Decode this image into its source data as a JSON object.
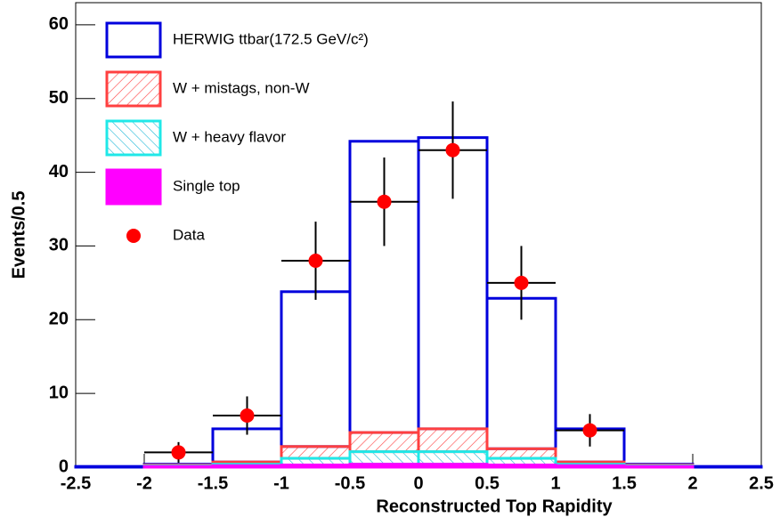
{
  "chart_data": {
    "type": "stacked-histogram",
    "x_label": "Reconstructed Top Rapidity",
    "y_label": "Events/0.5",
    "bins": [
      -2.5,
      -2,
      -1.5,
      -1,
      -0.5,
      0,
      0.5,
      1,
      1.5,
      2,
      2.5
    ],
    "series": [
      {
        "name": "HERWIG ttbar(172.5 GeV/c²)",
        "color": "#0000dd",
        "fill": "none",
        "values": [
          0.1,
          0.1,
          4.5,
          21.0,
          39.5,
          39.5,
          20.4,
          4.5,
          0.1,
          0.1
        ]
      },
      {
        "name": "W + mistags, non-W",
        "color": "#ff4040",
        "fill": "hatch-forward",
        "values": [
          0,
          0.1,
          0.3,
          1.6,
          2.6,
          3.1,
          1.3,
          0.3,
          0.1,
          0
        ]
      },
      {
        "name": "W + heavy flavor",
        "color": "#20e8e8",
        "fill": "hatch-back",
        "values": [
          0,
          0.1,
          0.2,
          0.9,
          1.7,
          1.7,
          0.9,
          0.2,
          0.1,
          0
        ]
      },
      {
        "name": "Single top",
        "color": "#ff00ff",
        "fill": "solid",
        "values": [
          0,
          0.1,
          0.2,
          0.3,
          0.4,
          0.4,
          0.3,
          0.2,
          0.1,
          0
        ]
      }
    ],
    "stack_order": [
      3,
      2,
      1,
      0
    ],
    "data": {
      "name": "Data",
      "color": "#ff0000",
      "x": [
        -1.75,
        -1.25,
        -0.75,
        -0.25,
        0.25,
        0.75,
        1.25
      ],
      "values": [
        2,
        7,
        28,
        36,
        43,
        25,
        5
      ],
      "errors": [
        1.4,
        2.6,
        5.3,
        6.0,
        6.6,
        5.0,
        2.2
      ],
      "x_errors": [
        0.25,
        0.25,
        0.25,
        0.25,
        0.25,
        0.25,
        0.25
      ]
    },
    "xlim": [
      -2.5,
      2.5
    ],
    "xticks": [
      -2.5,
      -2,
      -1.5,
      -1,
      -0.5,
      0,
      0.5,
      1,
      1.5,
      2,
      2.5
    ],
    "ylim": [
      0,
      63
    ],
    "yticks": [
      0,
      10,
      20,
      30,
      40,
      50,
      60
    ],
    "grid": false
  }
}
